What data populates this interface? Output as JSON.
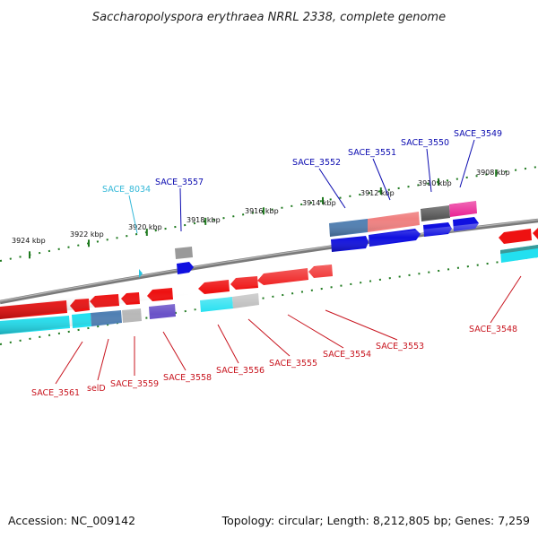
{
  "title": "Saccharopolyspora erythraea NRRL 2338, complete genome",
  "footer": {
    "accession": "Accession: NC_009142",
    "stats": "Topology: circular; Length: 8,212,805 bp; Genes: 7,259"
  },
  "colors": {
    "backbone": "#8a8a8a",
    "tick": "#1f7a1f",
    "label_forward": "#0b0bb0",
    "label_reverse": "#c8141e",
    "label_cyan": "#33b8d8"
  },
  "scale_labels": [
    "3924 kbp",
    "3922 kbp",
    "3920 kbp",
    "3918 kbp",
    "3916 kbp",
    "3914 kbp",
    "3912 kbp",
    "3910 kbp",
    "3908 kbp"
  ],
  "gene_labels": {
    "forward": [
      "SACE_8034",
      "SACE_3557",
      "SACE_3552",
      "SACE_3551",
      "SACE_3550",
      "SACE_3549"
    ],
    "reverse": [
      "SACE_3561",
      "selD",
      "SACE_3559",
      "SACE_3558",
      "SACE_3556",
      "SACE_3555",
      "SACE_3554",
      "SACE_3553",
      "SACE_3548"
    ]
  }
}
